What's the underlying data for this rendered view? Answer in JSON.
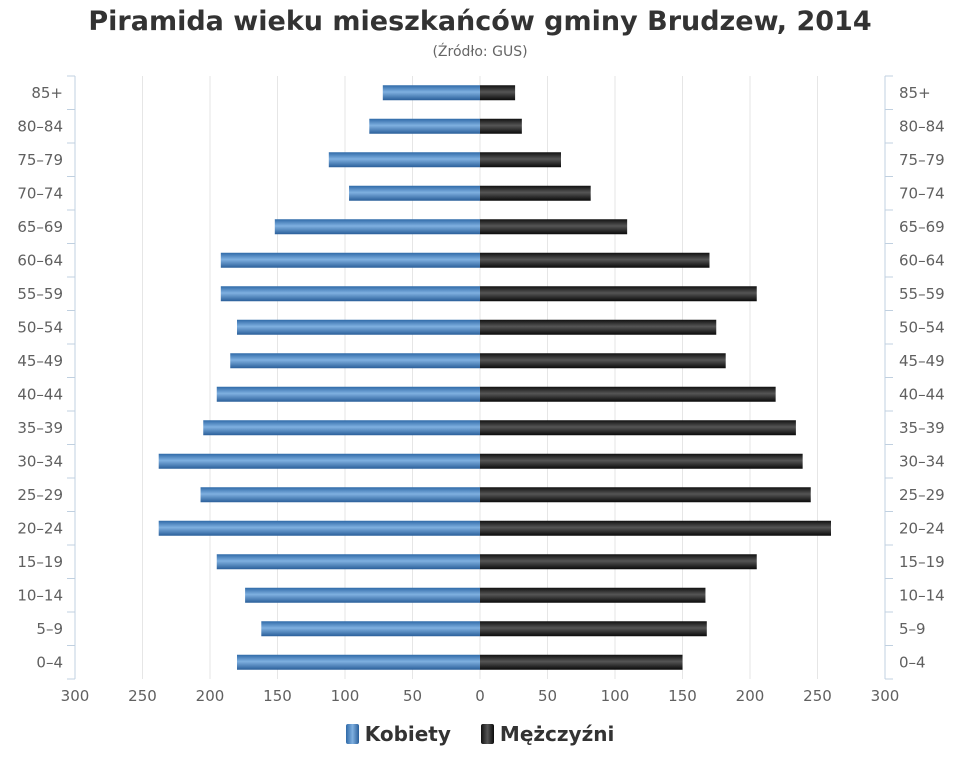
{
  "chart_data": {
    "type": "bar",
    "orientation": "horizontal",
    "title": "Piramida wieku mieszkańców gminy Brudzew, 2014",
    "subtitle": "(Źródło: GUS)",
    "categories": [
      "0–4",
      "5–9",
      "10–14",
      "15–19",
      "20–24",
      "25–29",
      "30–34",
      "35–39",
      "40–44",
      "45–49",
      "50–54",
      "55–59",
      "60–64",
      "65–69",
      "70–74",
      "75–79",
      "80–84",
      "85+"
    ],
    "series": [
      {
        "name": "Kobiety",
        "color": "#3a7fc1",
        "values": [
          -180,
          -162,
          -174,
          -195,
          -238,
          -207,
          -238,
          -205,
          -195,
          -185,
          -180,
          -192,
          -192,
          -152,
          -97,
          -112,
          -82,
          -72
        ]
      },
      {
        "name": "Mężczyźni",
        "color": "#222222",
        "values": [
          150,
          168,
          167,
          205,
          260,
          245,
          239,
          234,
          219,
          182,
          175,
          205,
          170,
          109,
          82,
          60,
          31,
          26
        ]
      }
    ],
    "xlim": [
      -300,
      300
    ],
    "x_tick_labels": [
      "300",
      "250",
      "200",
      "150",
      "100",
      "50",
      "0",
      "50",
      "100",
      "150",
      "200",
      "250",
      "300"
    ],
    "grid": true,
    "legend_position": "bottom"
  }
}
